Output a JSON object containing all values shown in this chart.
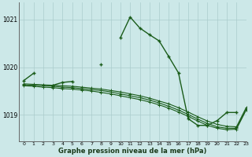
{
  "title": "Graphe pression niveau de la mer (hPa)",
  "bg_color": "#cce8e8",
  "line_color": "#1a5c1a",
  "grid_color": "#aacccc",
  "xlim": [
    -0.5,
    23
  ],
  "ylim": [
    1018.45,
    1021.35
  ],
  "yticks": [
    1019,
    1020,
    1021
  ],
  "hours": [
    0,
    1,
    2,
    3,
    4,
    5,
    6,
    7,
    8,
    9,
    10,
    11,
    12,
    13,
    14,
    15,
    16,
    17,
    18,
    19,
    20,
    21,
    22,
    23
  ],
  "main_y": [
    1019.72,
    1019.87,
    null,
    1019.62,
    1019.68,
    1019.7,
    null,
    null,
    1020.05,
    null,
    1020.62,
    1021.05,
    1020.82,
    1020.68,
    1020.55,
    1020.22,
    1019.88,
    1018.92,
    1018.78,
    1018.78,
    1018.88,
    1019.05,
    1019.05,
    null
  ],
  "line2_y": [
    1019.65,
    1019.64,
    1019.63,
    1019.62,
    1019.61,
    1019.6,
    1019.58,
    1019.56,
    1019.54,
    1019.51,
    1019.48,
    1019.44,
    1019.4,
    1019.35,
    1019.29,
    1019.23,
    1019.15,
    1019.06,
    1018.96,
    1018.87,
    1018.8,
    1018.76,
    1018.75,
    1019.15
  ],
  "line3_y": [
    1019.63,
    1019.62,
    1019.61,
    1019.6,
    1019.58,
    1019.57,
    1019.55,
    1019.53,
    1019.51,
    1019.48,
    1019.44,
    1019.4,
    1019.36,
    1019.31,
    1019.25,
    1019.18,
    1019.1,
    1019.01,
    1018.91,
    1018.82,
    1018.75,
    1018.72,
    1018.72,
    1019.12
  ],
  "line4_y": [
    1019.61,
    1019.6,
    1019.58,
    1019.57,
    1019.55,
    1019.54,
    1019.52,
    1019.5,
    1019.47,
    1019.44,
    1019.4,
    1019.36,
    1019.32,
    1019.27,
    1019.21,
    1019.14,
    1019.06,
    1018.97,
    1018.87,
    1018.78,
    1018.72,
    1018.69,
    1018.7,
    1019.1
  ]
}
